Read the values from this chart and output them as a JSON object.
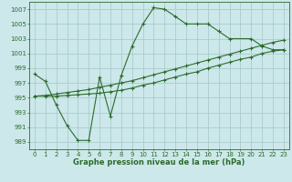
{
  "bg_color": "#cce8ea",
  "grid_color": "#aacccc",
  "line_color": "#2d6b2d",
  "xlabel": "Graphe pression niveau de la mer (hPa)",
  "xlim": [
    -0.5,
    23.5
  ],
  "ylim": [
    988,
    1008
  ],
  "yticks": [
    989,
    991,
    993,
    995,
    997,
    999,
    1001,
    1003,
    1005,
    1007
  ],
  "xticks": [
    0,
    1,
    2,
    3,
    4,
    5,
    6,
    7,
    8,
    9,
    10,
    11,
    12,
    13,
    14,
    15,
    16,
    17,
    18,
    19,
    20,
    21,
    22,
    23
  ],
  "series1_x": [
    0,
    1,
    2,
    3,
    4,
    5,
    6,
    7,
    8,
    9,
    10,
    11,
    12,
    13,
    14,
    15,
    16,
    17,
    18,
    20,
    21,
    22,
    23
  ],
  "series1_y": [
    998.2,
    997.2,
    994.0,
    991.2,
    989.2,
    989.2,
    997.8,
    992.5,
    998.0,
    1002.0,
    1005.0,
    1007.2,
    1007.0,
    1006.0,
    1005.0,
    1005.0,
    1005.0,
    1004.0,
    1003.0,
    1003.0,
    1002.0,
    1001.5,
    1001.5
  ],
  "series2_x": [
    0,
    1,
    2,
    3,
    4,
    5,
    6,
    7,
    8,
    9,
    10,
    11,
    12,
    13,
    14,
    15,
    16,
    17,
    18,
    19,
    20,
    21,
    22,
    23
  ],
  "series2_y": [
    995.2,
    995.2,
    995.2,
    995.3,
    995.4,
    995.5,
    995.6,
    995.8,
    996.0,
    996.3,
    996.7,
    997.0,
    997.4,
    997.8,
    998.2,
    998.5,
    999.0,
    999.4,
    999.8,
    1000.2,
    1000.5,
    1001.0,
    1001.3,
    1001.5
  ],
  "series3_x": [
    0,
    1,
    2,
    3,
    4,
    5,
    6,
    7,
    8,
    9,
    10,
    11,
    12,
    13,
    14,
    15,
    16,
    17,
    18,
    19,
    20,
    21,
    22,
    23
  ],
  "series3_y": [
    995.2,
    995.3,
    995.5,
    995.7,
    995.9,
    996.1,
    996.4,
    996.7,
    997.0,
    997.3,
    997.7,
    998.1,
    998.5,
    998.9,
    999.3,
    999.7,
    1000.1,
    1000.5,
    1000.9,
    1001.3,
    1001.7,
    1002.1,
    1002.5,
    1002.8
  ]
}
